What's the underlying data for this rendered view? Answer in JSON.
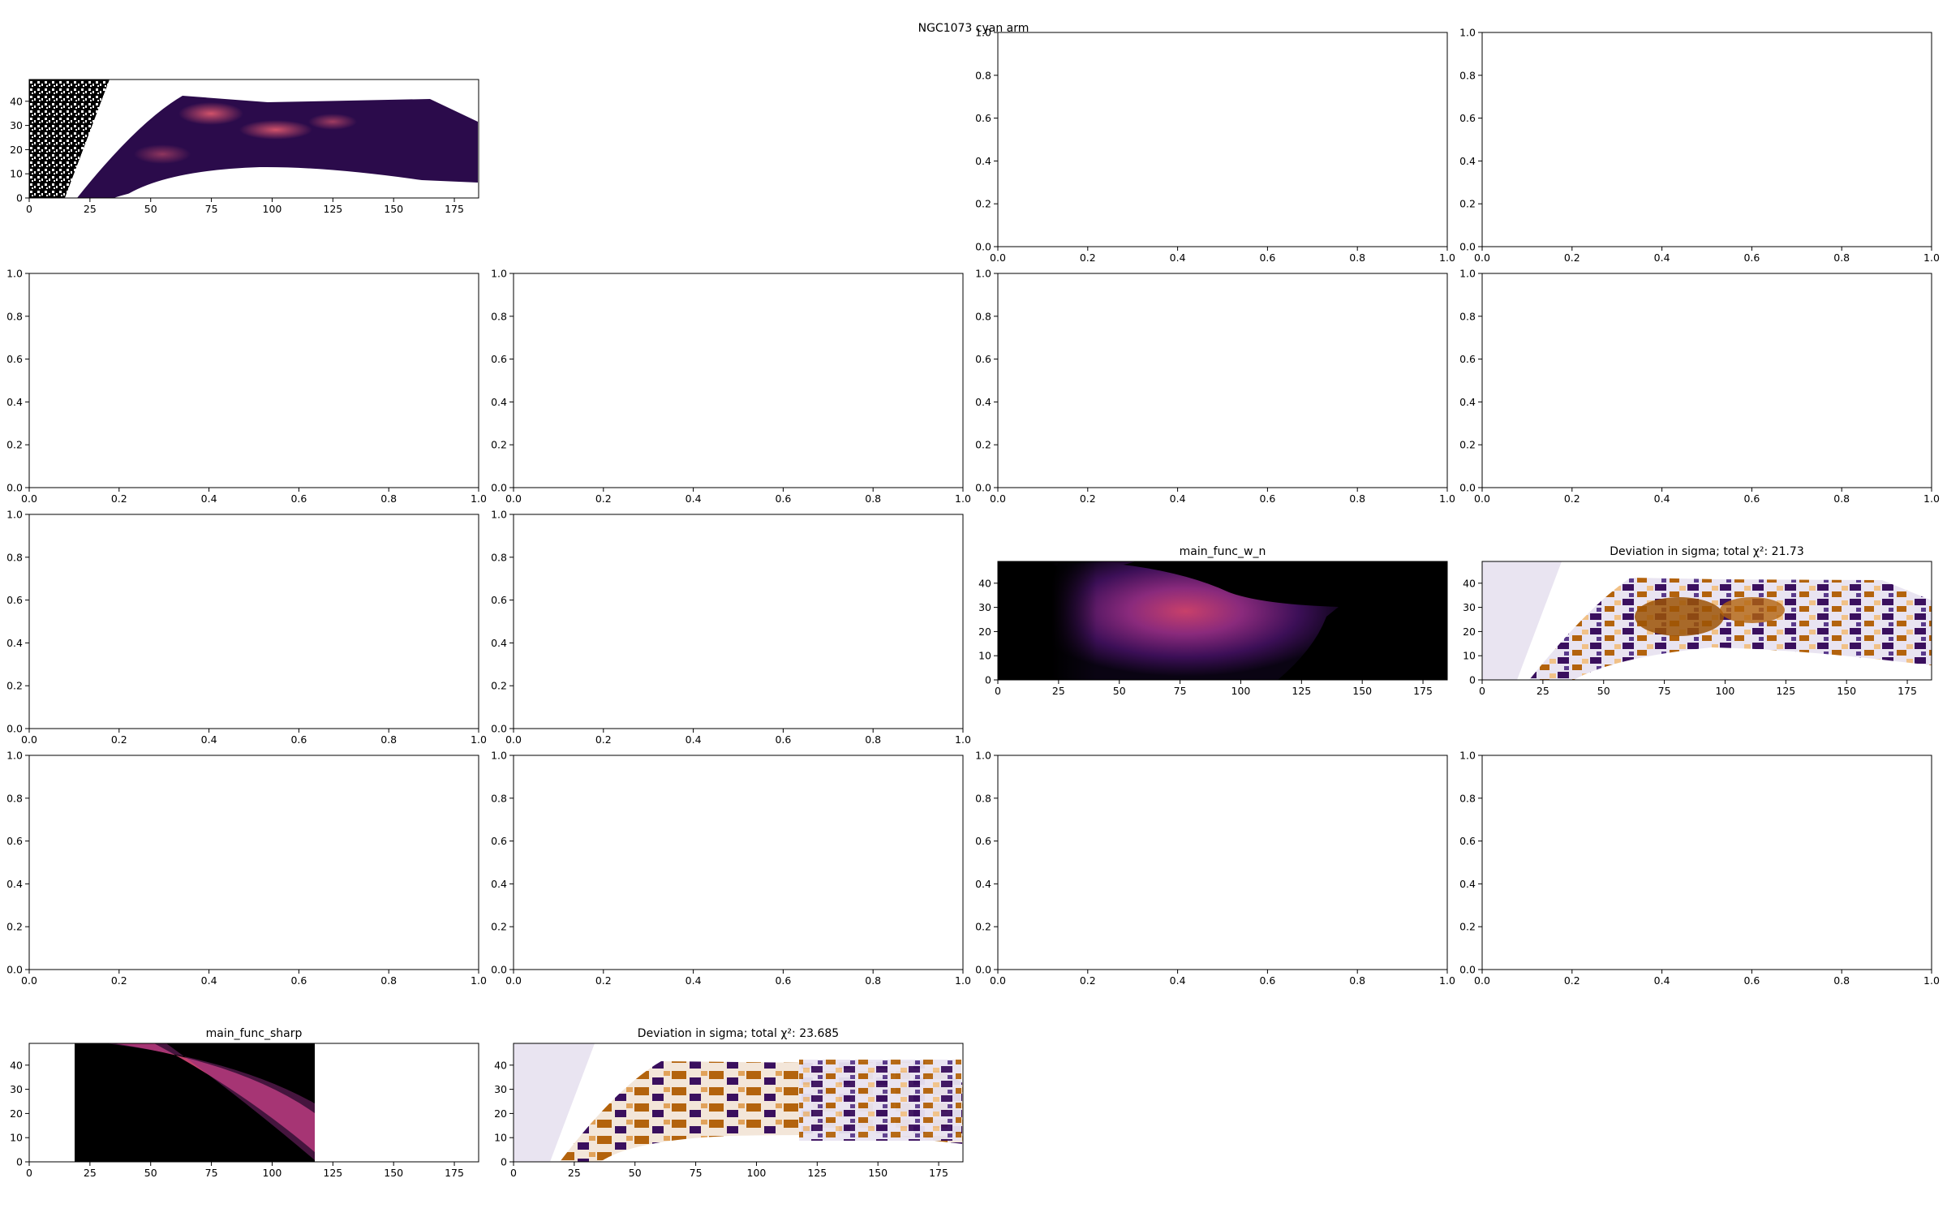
{
  "figure": {
    "suptitle": "NGC1073 cyan arm"
  },
  "chart_data": [
    {
      "id": "p00",
      "type": "heatmap",
      "title": "",
      "x_ticks": [
        "0",
        "25",
        "50",
        "75",
        "100",
        "125",
        "150",
        "175"
      ],
      "y_ticks": [
        "0",
        "10",
        "20",
        "30",
        "40"
      ],
      "xlim": [
        0,
        185
      ],
      "ylim": [
        0,
        49
      ],
      "colormap": "inferno",
      "content": "observed data"
    },
    {
      "id": "p02",
      "type": "empty",
      "title": "",
      "x_ticks": [
        "0.0",
        "0.2",
        "0.4",
        "0.6",
        "0.8",
        "1.0"
      ],
      "y_ticks": [
        "0.0",
        "0.2",
        "0.4",
        "0.6",
        "0.8",
        "1.0"
      ]
    },
    {
      "id": "p03",
      "type": "empty",
      "title": "",
      "x_ticks": [
        "0.0",
        "0.2",
        "0.4",
        "0.6",
        "0.8",
        "1.0"
      ],
      "y_ticks": [
        "0.0",
        "0.2",
        "0.4",
        "0.6",
        "0.8",
        "1.0"
      ]
    },
    {
      "id": "p10",
      "type": "empty",
      "title": "",
      "x_ticks": [
        "0.0",
        "0.2",
        "0.4",
        "0.6",
        "0.8",
        "1.0"
      ],
      "y_ticks": [
        "0.0",
        "0.2",
        "0.4",
        "0.6",
        "0.8",
        "1.0"
      ]
    },
    {
      "id": "p11",
      "type": "empty",
      "title": "",
      "x_ticks": [
        "0.0",
        "0.2",
        "0.4",
        "0.6",
        "0.8",
        "1.0"
      ],
      "y_ticks": [
        "0.0",
        "0.2",
        "0.4",
        "0.6",
        "0.8",
        "1.0"
      ]
    },
    {
      "id": "p12",
      "type": "empty",
      "title": "",
      "x_ticks": [
        "0.0",
        "0.2",
        "0.4",
        "0.6",
        "0.8",
        "1.0"
      ],
      "y_ticks": [
        "0.0",
        "0.2",
        "0.4",
        "0.6",
        "0.8",
        "1.0"
      ]
    },
    {
      "id": "p13",
      "type": "empty",
      "title": "",
      "x_ticks": [
        "0.0",
        "0.2",
        "0.4",
        "0.6",
        "0.8",
        "1.0"
      ],
      "y_ticks": [
        "0.0",
        "0.2",
        "0.4",
        "0.6",
        "0.8",
        "1.0"
      ]
    },
    {
      "id": "p20",
      "type": "empty",
      "title": "",
      "x_ticks": [
        "0.0",
        "0.2",
        "0.4",
        "0.6",
        "0.8",
        "1.0"
      ],
      "y_ticks": [
        "0.0",
        "0.2",
        "0.4",
        "0.6",
        "0.8",
        "1.0"
      ]
    },
    {
      "id": "p21",
      "type": "empty",
      "title": "",
      "x_ticks": [
        "0.0",
        "0.2",
        "0.4",
        "0.6",
        "0.8",
        "1.0"
      ],
      "y_ticks": [
        "0.0",
        "0.2",
        "0.4",
        "0.6",
        "0.8",
        "1.0"
      ]
    },
    {
      "id": "p22",
      "type": "heatmap",
      "title": "main_func_w_n",
      "x_ticks": [
        "0",
        "25",
        "50",
        "75",
        "100",
        "125",
        "150",
        "175"
      ],
      "y_ticks": [
        "0",
        "10",
        "20",
        "30",
        "40"
      ],
      "xlim": [
        0,
        185
      ],
      "ylim": [
        0,
        49
      ],
      "colormap": "inferno",
      "content": "model"
    },
    {
      "id": "p23",
      "type": "heatmap",
      "title": "Deviation in sigma; total χ²: 21.73",
      "x_ticks": [
        "0",
        "25",
        "50",
        "75",
        "100",
        "125",
        "150",
        "175"
      ],
      "y_ticks": [
        "0",
        "10",
        "20",
        "30",
        "40"
      ],
      "xlim": [
        0,
        185
      ],
      "ylim": [
        0,
        49
      ],
      "colormap": "PuOr",
      "content": "residual"
    },
    {
      "id": "p30",
      "type": "empty",
      "title": "",
      "x_ticks": [
        "0.0",
        "0.2",
        "0.4",
        "0.6",
        "0.8",
        "1.0"
      ],
      "y_ticks": [
        "0.0",
        "0.2",
        "0.4",
        "0.6",
        "0.8",
        "1.0"
      ]
    },
    {
      "id": "p31",
      "type": "empty",
      "title": "",
      "x_ticks": [
        "0.0",
        "0.2",
        "0.4",
        "0.6",
        "0.8",
        "1.0"
      ],
      "y_ticks": [
        "0.0",
        "0.2",
        "0.4",
        "0.6",
        "0.8",
        "1.0"
      ]
    },
    {
      "id": "p32",
      "type": "empty",
      "title": "",
      "x_ticks": [
        "0.0",
        "0.2",
        "0.4",
        "0.6",
        "0.8",
        "1.0"
      ],
      "y_ticks": [
        "0.0",
        "0.2",
        "0.4",
        "0.6",
        "0.8",
        "1.0"
      ]
    },
    {
      "id": "p33",
      "type": "empty",
      "title": "",
      "x_ticks": [
        "0.0",
        "0.2",
        "0.4",
        "0.6",
        "0.8",
        "1.0"
      ],
      "y_ticks": [
        "0.0",
        "0.2",
        "0.4",
        "0.6",
        "0.8",
        "1.0"
      ]
    },
    {
      "id": "p40",
      "type": "heatmap",
      "title": "main_func_sharp",
      "x_ticks": [
        "0",
        "25",
        "50",
        "75",
        "100",
        "125",
        "150",
        "175"
      ],
      "y_ticks": [
        "0",
        "10",
        "20",
        "30",
        "40"
      ],
      "xlim": [
        0,
        185
      ],
      "ylim": [
        0,
        49
      ],
      "colormap": "inferno",
      "content": "model"
    },
    {
      "id": "p41",
      "type": "heatmap",
      "title": "Deviation in sigma; total χ²: 23.685",
      "x_ticks": [
        "0",
        "25",
        "50",
        "75",
        "100",
        "125",
        "150",
        "175"
      ],
      "y_ticks": [
        "0",
        "10",
        "20",
        "30",
        "40"
      ],
      "xlim": [
        0,
        185
      ],
      "ylim": [
        0,
        49
      ],
      "colormap": "PuOr",
      "content": "residual"
    }
  ]
}
